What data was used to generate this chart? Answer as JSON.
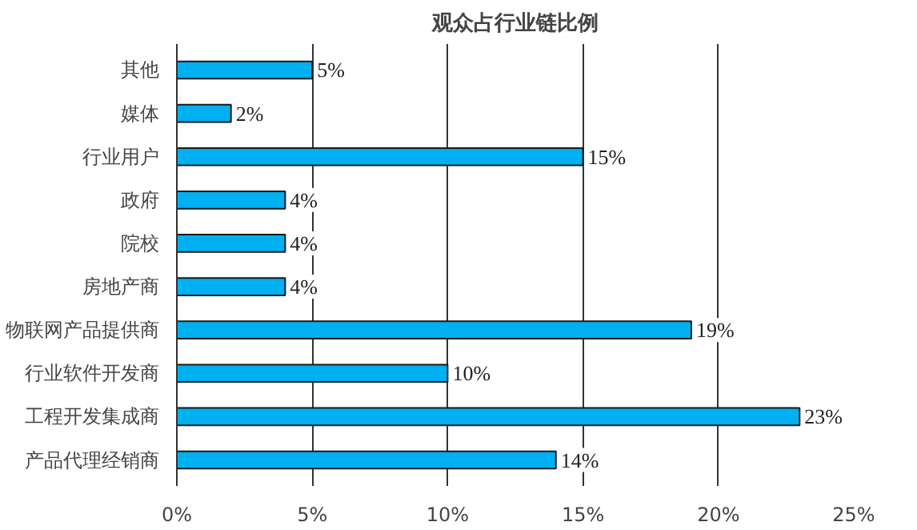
{
  "chart_data": {
    "type": "bar",
    "orientation": "horizontal",
    "title": "观众占行业链比例",
    "categories": [
      "其他",
      "媒体",
      "行业用户",
      "政府",
      "院校",
      "房地产商",
      "物联网产品提供商",
      "行业软件开发商",
      "工程开发集成商",
      "产品代理经销商"
    ],
    "values": [
      5,
      2,
      15,
      4,
      4,
      4,
      19,
      10,
      23,
      14
    ],
    "color": "#00b0f0",
    "value_labels": [
      "5%",
      "2%",
      "15%",
      "4%",
      "4%",
      "4%",
      "19%",
      "10%",
      "23%",
      "14%"
    ],
    "xlim": [
      0,
      25
    ],
    "xticks": [
      {
        "value": 0,
        "label": "0%"
      },
      {
        "value": 5,
        "label": "5%"
      },
      {
        "value": 10,
        "label": "10%"
      },
      {
        "value": 15,
        "label": "15%"
      },
      {
        "value": 20,
        "label": "20%"
      },
      {
        "value": 25,
        "label": "25%"
      }
    ],
    "grid": "x"
  }
}
